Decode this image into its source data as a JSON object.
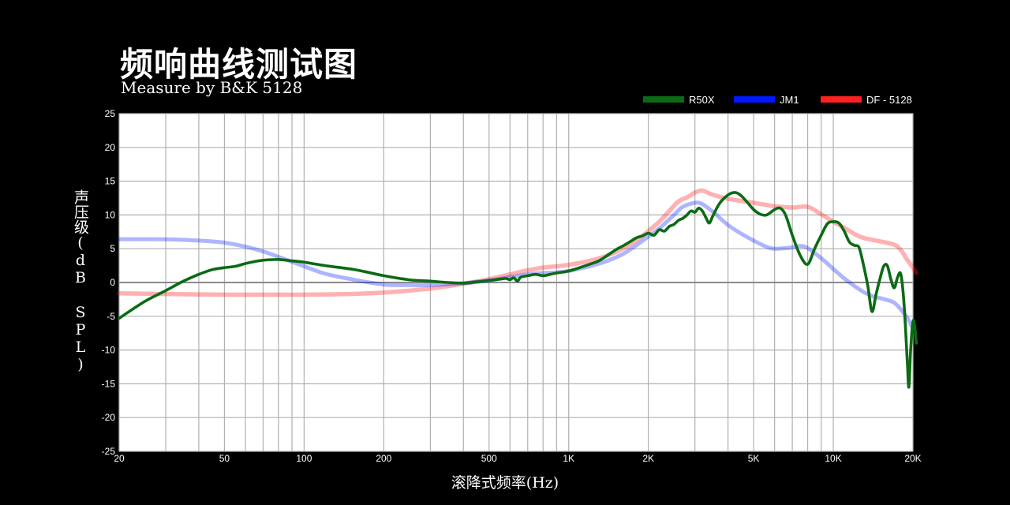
{
  "title": "频响曲线测试图",
  "subtitle": "Measure by B&K 5128",
  "colors": {
    "background": "#000000",
    "plot_bg": "#ffffff",
    "grid": "#b0b0b0",
    "zero_line": "#8a8a8a"
  },
  "chart_data": {
    "type": "line",
    "xlabel": "滚降式频率(Hz)",
    "ylabel": "声压级(dB SPL)",
    "x_scale": "log",
    "xlim": [
      20,
      20000
    ],
    "ylim": [
      -25,
      25
    ],
    "grid": true,
    "legend_position": "top-right",
    "x_ticks": [
      {
        "value": 20,
        "label": "20"
      },
      {
        "value": 50,
        "label": "50"
      },
      {
        "value": 100,
        "label": "100"
      },
      {
        "value": 200,
        "label": "200"
      },
      {
        "value": 500,
        "label": "500"
      },
      {
        "value": 1000,
        "label": "1K"
      },
      {
        "value": 2000,
        "label": "2K"
      },
      {
        "value": 5000,
        "label": "5K"
      },
      {
        "value": 10000,
        "label": "10K"
      },
      {
        "value": 20000,
        "label": "20K"
      }
    ],
    "y_ticks": [
      25,
      20,
      15,
      10,
      5,
      0,
      -5,
      -10,
      -15,
      -20,
      -25
    ],
    "series": [
      {
        "name": "R50X",
        "color": "#0a6b14",
        "points": [
          [
            20,
            -5.3
          ],
          [
            25,
            -2.8
          ],
          [
            30,
            -1.2
          ],
          [
            35,
            0.2
          ],
          [
            40,
            1.2
          ],
          [
            45,
            1.9
          ],
          [
            50,
            2.2
          ],
          [
            55,
            2.4
          ],
          [
            60,
            2.8
          ],
          [
            65,
            3.1
          ],
          [
            70,
            3.3
          ],
          [
            80,
            3.4
          ],
          [
            90,
            3.2
          ],
          [
            100,
            3.0
          ],
          [
            120,
            2.5
          ],
          [
            150,
            2.0
          ],
          [
            170,
            1.6
          ],
          [
            200,
            1.0
          ],
          [
            250,
            0.4
          ],
          [
            300,
            0.2
          ],
          [
            350,
            0.0
          ],
          [
            400,
            -0.1
          ],
          [
            450,
            0.1
          ],
          [
            500,
            0.3
          ],
          [
            550,
            0.5
          ],
          [
            580,
            0.6
          ],
          [
            600,
            0.4
          ],
          [
            620,
            0.7
          ],
          [
            640,
            0.2
          ],
          [
            660,
            0.8
          ],
          [
            700,
            1.0
          ],
          [
            750,
            1.2
          ],
          [
            800,
            1.0
          ],
          [
            850,
            1.2
          ],
          [
            900,
            1.4
          ],
          [
            1000,
            1.7
          ],
          [
            1100,
            2.2
          ],
          [
            1200,
            2.7
          ],
          [
            1300,
            3.2
          ],
          [
            1400,
            4.0
          ],
          [
            1500,
            4.8
          ],
          [
            1600,
            5.4
          ],
          [
            1700,
            6.0
          ],
          [
            1800,
            6.6
          ],
          [
            1900,
            6.9
          ],
          [
            2000,
            7.3
          ],
          [
            2100,
            7.0
          ],
          [
            2200,
            7.8
          ],
          [
            2300,
            7.6
          ],
          [
            2400,
            8.3
          ],
          [
            2500,
            8.6
          ],
          [
            2600,
            9.2
          ],
          [
            2700,
            9.5
          ],
          [
            2800,
            10.0
          ],
          [
            2900,
            10.6
          ],
          [
            3000,
            10.4
          ],
          [
            3100,
            11.0
          ],
          [
            3200,
            10.6
          ],
          [
            3300,
            9.6
          ],
          [
            3400,
            8.8
          ],
          [
            3500,
            9.8
          ],
          [
            3700,
            11.6
          ],
          [
            3900,
            12.6
          ],
          [
            4100,
            13.2
          ],
          [
            4300,
            13.3
          ],
          [
            4500,
            12.8
          ],
          [
            4700,
            12.0
          ],
          [
            5000,
            10.8
          ],
          [
            5300,
            10.1
          ],
          [
            5600,
            10.0
          ],
          [
            6000,
            10.8
          ],
          [
            6300,
            11.0
          ],
          [
            6600,
            10.0
          ],
          [
            7000,
            7.0
          ],
          [
            7500,
            4.0
          ],
          [
            8000,
            2.7
          ],
          [
            8500,
            5.0
          ],
          [
            9000,
            7.0
          ],
          [
            9500,
            8.7
          ],
          [
            10000,
            9.0
          ],
          [
            10500,
            8.8
          ],
          [
            11000,
            7.6
          ],
          [
            11500,
            6.0
          ],
          [
            12000,
            5.5
          ],
          [
            12500,
            5.2
          ],
          [
            13000,
            2.6
          ],
          [
            13500,
            -0.5
          ],
          [
            14000,
            -4.3
          ],
          [
            14500,
            -1.8
          ],
          [
            15000,
            0.5
          ],
          [
            15500,
            2.4
          ],
          [
            16000,
            2.5
          ],
          [
            16500,
            0.5
          ],
          [
            17000,
            -0.8
          ],
          [
            17500,
            0.8
          ],
          [
            18000,
            1.2
          ],
          [
            18500,
            -3.0
          ],
          [
            19000,
            -11.0
          ],
          [
            19300,
            -15.5
          ],
          [
            19600,
            -10.0
          ],
          [
            20000,
            -5.8
          ],
          [
            20300,
            -6.5
          ],
          [
            20600,
            -9.0
          ]
        ]
      },
      {
        "name": "JM1",
        "color": "#0019ff",
        "points": [
          [
            20,
            6.4
          ],
          [
            30,
            6.4
          ],
          [
            40,
            6.2
          ],
          [
            50,
            5.9
          ],
          [
            60,
            5.3
          ],
          [
            70,
            4.6
          ],
          [
            80,
            3.8
          ],
          [
            100,
            2.4
          ],
          [
            120,
            1.3
          ],
          [
            150,
            0.5
          ],
          [
            200,
            -0.3
          ],
          [
            250,
            -0.4
          ],
          [
            300,
            -0.4
          ],
          [
            400,
            -0.1
          ],
          [
            500,
            0.3
          ],
          [
            600,
            0.8
          ],
          [
            700,
            1.2
          ],
          [
            800,
            1.4
          ],
          [
            900,
            1.5
          ],
          [
            1000,
            1.7
          ],
          [
            1200,
            2.4
          ],
          [
            1400,
            3.2
          ],
          [
            1600,
            4.2
          ],
          [
            1800,
            5.5
          ],
          [
            2000,
            6.8
          ],
          [
            2200,
            8.0
          ],
          [
            2500,
            10.0
          ],
          [
            2700,
            11.2
          ],
          [
            3000,
            11.8
          ],
          [
            3200,
            11.6
          ],
          [
            3500,
            10.5
          ],
          [
            4000,
            8.5
          ],
          [
            4500,
            7.2
          ],
          [
            5000,
            6.2
          ],
          [
            5500,
            5.4
          ],
          [
            6000,
            5.0
          ],
          [
            7000,
            5.2
          ],
          [
            7500,
            5.4
          ],
          [
            8000,
            5.1
          ],
          [
            9000,
            3.6
          ],
          [
            10000,
            2.0
          ],
          [
            11000,
            0.6
          ],
          [
            12000,
            -0.5
          ],
          [
            13000,
            -1.4
          ],
          [
            14000,
            -2.0
          ],
          [
            16000,
            -2.6
          ],
          [
            17000,
            -3.0
          ],
          [
            18000,
            -4.0
          ],
          [
            19000,
            -5.2
          ],
          [
            20000,
            -6.8
          ],
          [
            20600,
            -8.0
          ]
        ]
      },
      {
        "name": "DF - 5128",
        "color": "#ff2020",
        "points": [
          [
            20,
            -1.6
          ],
          [
            30,
            -1.7
          ],
          [
            50,
            -1.8
          ],
          [
            80,
            -1.8
          ],
          [
            100,
            -1.8
          ],
          [
            150,
            -1.7
          ],
          [
            200,
            -1.5
          ],
          [
            300,
            -0.9
          ],
          [
            400,
            -0.2
          ],
          [
            500,
            0.5
          ],
          [
            600,
            1.2
          ],
          [
            700,
            1.8
          ],
          [
            800,
            2.2
          ],
          [
            900,
            2.4
          ],
          [
            1000,
            2.6
          ],
          [
            1200,
            3.2
          ],
          [
            1400,
            4.0
          ],
          [
            1600,
            5.0
          ],
          [
            1800,
            6.2
          ],
          [
            2000,
            7.6
          ],
          [
            2200,
            9.0
          ],
          [
            2400,
            10.6
          ],
          [
            2600,
            12.0
          ],
          [
            2800,
            12.6
          ],
          [
            3000,
            13.3
          ],
          [
            3200,
            13.6
          ],
          [
            3500,
            13.0
          ],
          [
            4000,
            12.4
          ],
          [
            5000,
            11.8
          ],
          [
            6000,
            11.3
          ],
          [
            7000,
            11.1
          ],
          [
            8000,
            11.2
          ],
          [
            9000,
            10.1
          ],
          [
            10000,
            9.0
          ],
          [
            11000,
            8.1
          ],
          [
            12000,
            7.2
          ],
          [
            13000,
            6.6
          ],
          [
            15000,
            6.1
          ],
          [
            17000,
            5.6
          ],
          [
            18000,
            4.8
          ],
          [
            19000,
            3.4
          ],
          [
            20000,
            2.2
          ],
          [
            20600,
            1.4
          ]
        ]
      }
    ]
  }
}
